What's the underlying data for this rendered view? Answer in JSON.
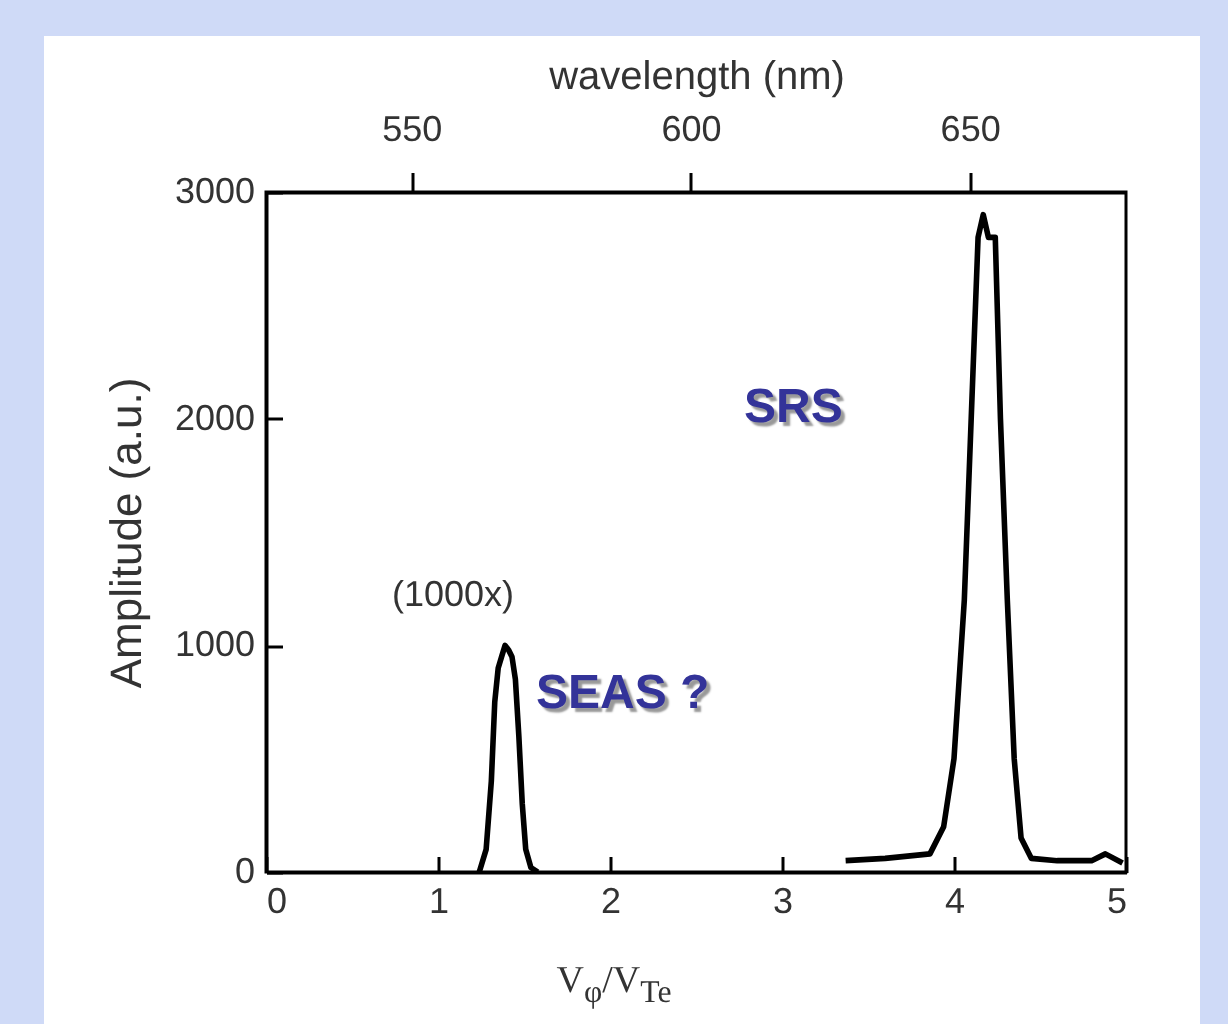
{
  "chart_data": {
    "type": "line",
    "xlabel": "V$_{φ}$/V$_{Te}$",
    "ylabel": "Amplitude (a.u.)",
    "x2label": "wavelength (nm)",
    "xlim": [
      0,
      5
    ],
    "xticks": [
      0,
      1,
      2,
      3,
      4,
      5
    ],
    "ylim": [
      0,
      3000
    ],
    "yticks": [
      0,
      1000,
      2000,
      3000
    ],
    "x2lim": [
      524,
      678
    ],
    "x2ticks": [
      550,
      600,
      650
    ],
    "series": [
      {
        "color": "#000000",
        "x": [
          1.24,
          1.28,
          1.31,
          1.33,
          1.35,
          1.37,
          1.39,
          1.41,
          1.43,
          1.45,
          1.47,
          1.49,
          1.51,
          1.54,
          1.58
        ],
        "values": [
          0,
          100,
          400,
          750,
          900,
          950,
          1000,
          980,
          950,
          850,
          600,
          300,
          100,
          20,
          0
        ]
      },
      {
        "color": "#000000",
        "x": [
          3.37,
          3.6,
          3.86,
          3.94,
          4.0,
          4.06,
          4.1,
          4.14,
          4.17,
          4.2,
          4.24,
          4.27,
          4.31,
          4.35,
          4.39,
          4.45,
          4.6,
          4.8,
          4.88,
          4.98
        ],
        "values": [
          50,
          60,
          80,
          200,
          500,
          1200,
          2000,
          2800,
          2900,
          2800,
          2800,
          2000,
          1200,
          500,
          150,
          60,
          50,
          50,
          80,
          40
        ]
      }
    ],
    "annotations": [
      "(1000x)",
      "SEAS ?",
      "SRS"
    ]
  }
}
